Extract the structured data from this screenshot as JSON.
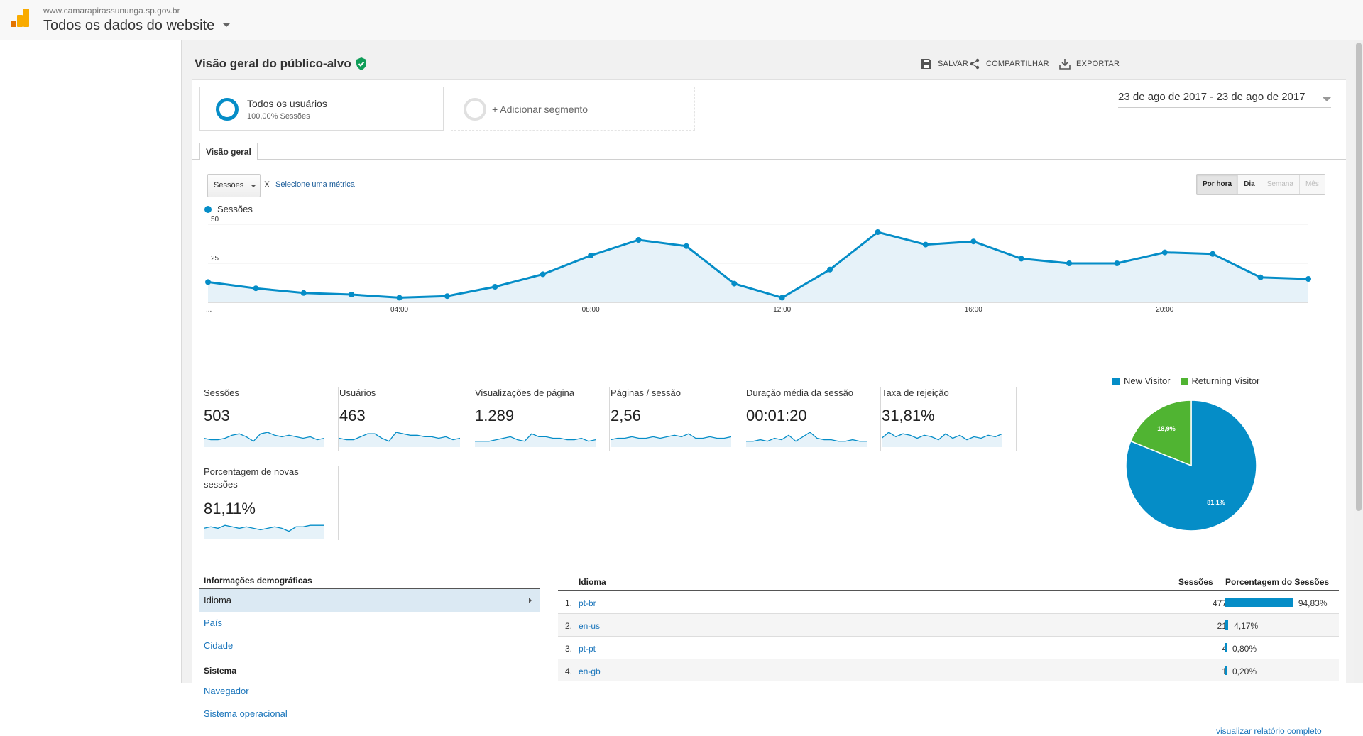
{
  "topbar": {
    "site_url": "www.camarapirassununga.sp.gov.br",
    "view_title": "Todos os dados do website"
  },
  "report": {
    "title": "Visão geral do público-alvo",
    "actions": {
      "save": "SALVAR",
      "share": "COMPARTILHAR",
      "export": "EXPORTAR"
    }
  },
  "segments": {
    "active_name": "Todos os usuários",
    "active_sub": "100,00% Sessões",
    "add_label": "+ Adicionar segmento"
  },
  "date_range": "23 de ago de 2017 - 23 de ago de 2017",
  "tabs": {
    "overview": "Visão geral"
  },
  "chart_controls": {
    "metric": "Sessões",
    "vs": "X",
    "choose_metric": "Selecione uma métrica",
    "periods": [
      "Por hora",
      "Dia",
      "Semana",
      "Mês"
    ],
    "active_period": "Por hora"
  },
  "colors": {
    "accent": "#058dc7",
    "returning": "#50b432",
    "link": "#1a75bb"
  },
  "chart_data": [
    {
      "type": "area",
      "legend": [
        "Sessões"
      ],
      "xticks": [
        "...",
        "04:00",
        "08:00",
        "12:00",
        "16:00",
        "20:00"
      ],
      "x": [
        "00:00",
        "01:00",
        "02:00",
        "03:00",
        "04:00",
        "05:00",
        "06:00",
        "07:00",
        "08:00",
        "09:00",
        "10:00",
        "11:00",
        "12:00",
        "13:00",
        "14:00",
        "15:00",
        "16:00",
        "17:00",
        "18:00",
        "19:00",
        "20:00",
        "21:00",
        "22:00",
        "23:00"
      ],
      "series": [
        {
          "name": "Sessões",
          "values": [
            13,
            9,
            6,
            5,
            3,
            4,
            10,
            18,
            30,
            40,
            36,
            12,
            3,
            21,
            45,
            37,
            39,
            28,
            25,
            25,
            32,
            31,
            16,
            15
          ]
        }
      ],
      "yticks": [
        25,
        50
      ],
      "ylim": [
        0,
        50
      ],
      "grid": true
    },
    {
      "type": "pie",
      "legend": [
        "New Visitor",
        "Returning Visitor"
      ],
      "series": [
        {
          "name": "New Visitor",
          "values": [
            81.1
          ],
          "label": "81,1%"
        },
        {
          "name": "Returning Visitor",
          "values": [
            18.9
          ],
          "label": "18,9%"
        }
      ]
    }
  ],
  "metrics": [
    {
      "name": "Sessões",
      "value": "503",
      "spark": [
        5,
        4,
        4,
        5,
        7,
        8,
        6,
        3,
        8,
        9,
        7,
        6,
        7,
        6,
        5,
        6,
        4,
        5
      ]
    },
    {
      "name": "Usuários",
      "value": "463",
      "spark": [
        5,
        4,
        4,
        6,
        8,
        8,
        5,
        3,
        9,
        8,
        7,
        7,
        6,
        6,
        5,
        6,
        4,
        5
      ]
    },
    {
      "name": "Visualizações de página",
      "value": "1.289",
      "spark": [
        3,
        3,
        3,
        4,
        5,
        6,
        4,
        3,
        8,
        6,
        6,
        5,
        5,
        4,
        4,
        5,
        3,
        4
      ]
    },
    {
      "name": "Páginas / sessão",
      "value": "2,56",
      "spark": [
        4,
        5,
        5,
        6,
        5,
        5,
        6,
        5,
        6,
        7,
        6,
        8,
        5,
        5,
        6,
        5,
        5,
        6
      ]
    },
    {
      "name": "Duração média da sessão",
      "value": "00:01:20",
      "spark": [
        3,
        3,
        4,
        3,
        5,
        4,
        7,
        3,
        6,
        9,
        5,
        4,
        4,
        3,
        3,
        4,
        3,
        3
      ]
    },
    {
      "name": "Taxa de rejeição",
      "value": "31,81%",
      "spark": [
        5,
        9,
        6,
        8,
        7,
        5,
        7,
        6,
        4,
        8,
        5,
        7,
        4,
        6,
        5,
        7,
        6,
        8
      ]
    },
    {
      "name": "Porcentagem de novas sessões",
      "value": "81,11%",
      "spark": [
        6,
        7,
        6,
        8,
        7,
        6,
        7,
        6,
        5,
        6,
        7,
        6,
        4,
        7,
        7,
        8,
        8,
        8
      ]
    }
  ],
  "demographics": {
    "title": "Informações demográficas",
    "items": [
      "Idioma",
      "País",
      "Cidade"
    ],
    "system_title": "Sistema",
    "system_items": [
      "Navegador",
      "Sistema operacional"
    ]
  },
  "language_table": {
    "col_lang": "Idioma",
    "col_sessions": "Sessões",
    "col_pct": "Porcentagem do Sessões",
    "rows": [
      {
        "idx": "1.",
        "lang": "pt-br",
        "sessions": "477",
        "pct": "94,83%",
        "pct_num": 94.83
      },
      {
        "idx": "2.",
        "lang": "en-us",
        "sessions": "21",
        "pct": "4,17%",
        "pct_num": 4.17
      },
      {
        "idx": "3.",
        "lang": "pt-pt",
        "sessions": "4",
        "pct": "0,80%",
        "pct_num": 0.8
      },
      {
        "idx": "4.",
        "lang": "en-gb",
        "sessions": "1",
        "pct": "0,20%",
        "pct_num": 0.2
      }
    ],
    "full_report": "visualizar relatório completo"
  }
}
